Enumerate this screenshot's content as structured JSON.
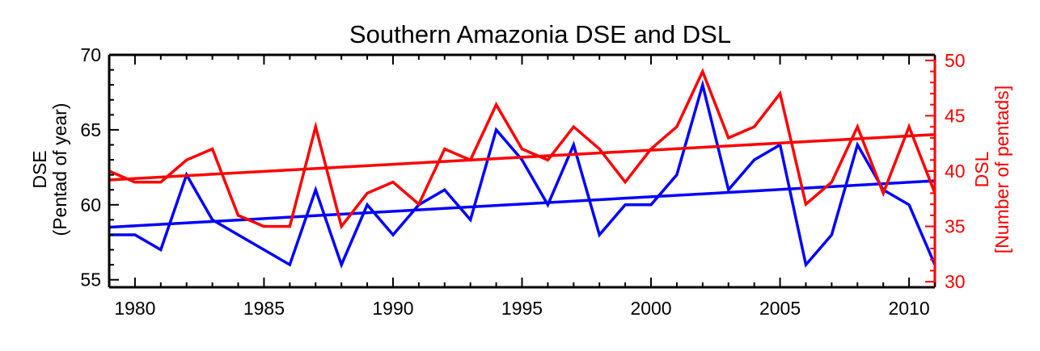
{
  "chart_data": {
    "type": "line",
    "title": "Southern Amazonia DSE and DSL",
    "x": [
      1979,
      1980,
      1981,
      1982,
      1983,
      1984,
      1985,
      1986,
      1987,
      1988,
      1989,
      1990,
      1991,
      1992,
      1993,
      1994,
      1995,
      1996,
      1997,
      1998,
      1999,
      2000,
      2001,
      2002,
      2003,
      2004,
      2005,
      2006,
      2007,
      2008,
      2009,
      2010,
      2011
    ],
    "xlim": [
      1979,
      2011
    ],
    "xticks": [
      "1980",
      "1985",
      "1990",
      "1995",
      "2000",
      "2005",
      "2010"
    ],
    "left_axis": {
      "label_line1": "DSE",
      "label_line2": "(Pentad of year)",
      "ylim": [
        54.5,
        70
      ],
      "ticks": [
        "55",
        "60",
        "65",
        "70"
      ],
      "color": "#000000"
    },
    "right_axis": {
      "label_line1": "DSL",
      "label_line2": "[Number of pentads]",
      "ylim": [
        29.5,
        50.5
      ],
      "ticks": [
        "30",
        "35",
        "40",
        "45",
        "50"
      ],
      "color": "#ff0000"
    },
    "series": [
      {
        "axis": "left",
        "color": "#0000ff",
        "values": [
          58,
          58,
          57,
          62,
          59,
          58,
          57,
          56,
          61,
          56,
          60,
          58,
          60,
          61,
          59,
          65,
          63,
          60,
          64,
          58,
          60,
          60,
          62,
          68,
          61,
          63,
          64,
          56,
          58,
          64,
          61,
          60,
          56
        ],
        "trend": [
          58.5,
          61.6
        ]
      },
      {
        "axis": "right",
        "color": "#ff0000",
        "values": [
          40,
          39,
          39,
          41,
          42,
          36,
          35,
          35,
          44,
          35,
          38,
          39,
          37,
          42,
          41,
          46,
          42,
          41,
          44,
          42,
          39,
          42,
          44,
          49,
          43,
          44,
          47,
          37,
          39,
          44,
          38,
          44,
          38
        ],
        "trend": [
          39.2,
          43.3
        ]
      }
    ]
  }
}
